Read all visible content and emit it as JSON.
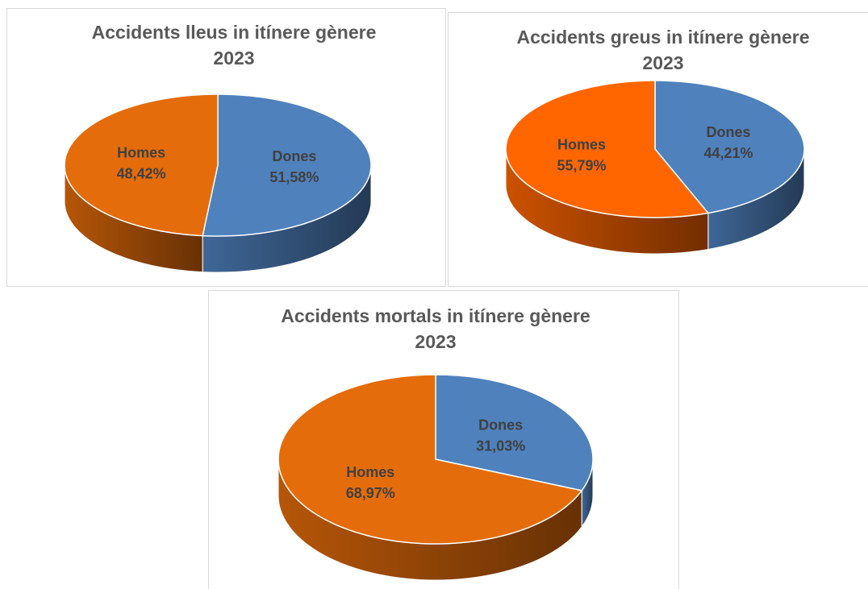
{
  "chart_data": [
    {
      "type": "pie",
      "title": [
        "Accidents lleus in itínere gènere",
        "2023"
      ],
      "categories": [
        "Dones",
        "Homes"
      ],
      "values": [
        51.58,
        48.42
      ],
      "value_labels": [
        "51,58%",
        "48,42%"
      ],
      "colors": [
        "#4f81bd",
        "#e46c0a"
      ]
    },
    {
      "type": "pie",
      "title": [
        "Accidents greus in itínere gènere",
        "2023"
      ],
      "categories": [
        "Dones",
        "Homes"
      ],
      "values": [
        44.21,
        55.79
      ],
      "value_labels": [
        "44,21%",
        "55,79%"
      ],
      "colors": [
        "#4f81bd",
        "#ff6600"
      ]
    },
    {
      "type": "pie",
      "title": [
        "Accidents mortals in itínere gènere",
        "2023"
      ],
      "categories": [
        "Dones",
        "Homes"
      ],
      "values": [
        31.03,
        68.97
      ],
      "value_labels": [
        "31,03%",
        "68,97%"
      ],
      "colors": [
        "#4f81bd",
        "#e46c0a"
      ]
    }
  ]
}
